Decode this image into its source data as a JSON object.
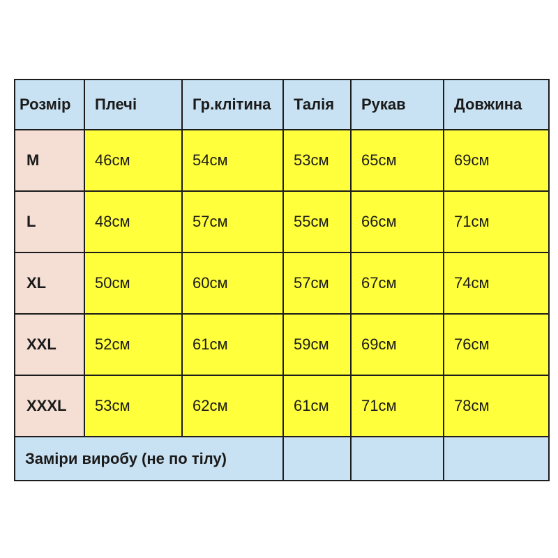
{
  "headers": [
    "Розмір",
    "Плечі",
    "Гр.клітина",
    "Талія",
    "Рукав",
    "Довжина"
  ],
  "rows": [
    {
      "size": "M",
      "values": [
        "46см",
        "54см",
        "53см",
        "65см",
        "69см"
      ]
    },
    {
      "size": "L",
      "values": [
        "48см",
        "57см",
        "55см",
        "66см",
        "71см"
      ]
    },
    {
      "size": "XL",
      "values": [
        "50см",
        "60см",
        "57см",
        "67см",
        "74см"
      ]
    },
    {
      "size": "XXL",
      "values": [
        "52см",
        "61см",
        "59см",
        "69см",
        "76см"
      ]
    },
    {
      "size": "XXXL",
      "values": [
        "53см",
        "62см",
        "61см",
        "71см",
        "78см"
      ]
    }
  ],
  "footer": "Заміри виробу (не по тілу)",
  "colors": {
    "header": "#c9e2f3",
    "size_column": "#f5dfd5",
    "values": "#ffff3c"
  }
}
